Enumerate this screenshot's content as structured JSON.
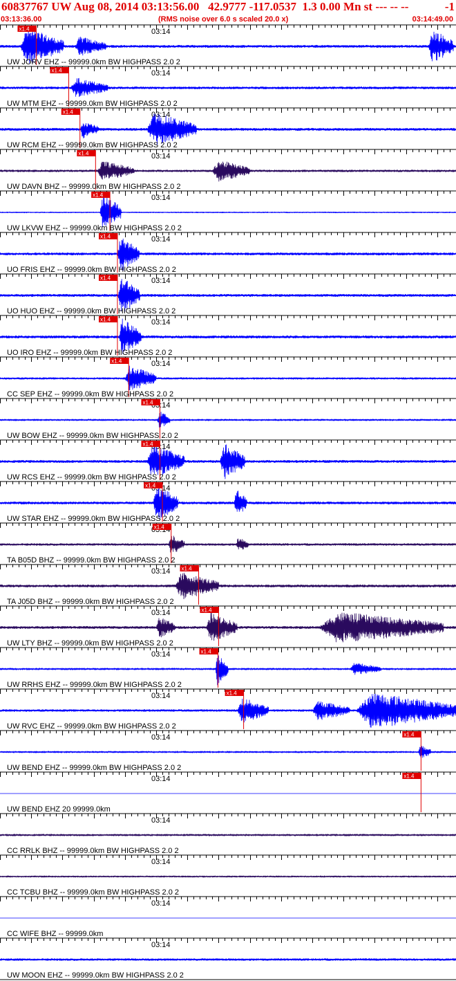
{
  "header": {
    "event_id": "60837767",
    "title": "UW Aug 08, 2014 03:13:56.00   42.9777 -117.0537  1.3 0.00 Mn st --- -- --",
    "right_number": "-1",
    "start_time": "03:13:36.00",
    "note": "(RMS noise over 6.0 s scaled 20.0 x)",
    "end_time": "03:14:49.00"
  },
  "colors": {
    "header_text": "#e00000",
    "trace_blue": "#0000ff",
    "trace_dark": "#2a0a5e",
    "pick_red": "#e00000",
    "axis": "#000000"
  },
  "chart_data": {
    "type": "seismogram",
    "time_axis": {
      "start": "03:13:36.00",
      "end": "03:14:49.00",
      "duration_s": 73,
      "mid_label": "03:14"
    },
    "pick_label": "x1.4",
    "traces": [
      {
        "label": "UW JORV EHZ -- 99999.0km BW  HIGHPASS  2.0  2",
        "color": "blue",
        "pick_s": 5.8,
        "amplitude": 0.3,
        "bursts": [
          {
            "t": 3.2,
            "dur": 7.0,
            "amp": 1.0
          },
          {
            "t": 12.0,
            "dur": 5.0,
            "amp": 0.55
          },
          {
            "t": 68.6,
            "dur": 4.0,
            "amp": 0.95
          }
        ]
      },
      {
        "label": "UW MTM EHZ -- 99999.0km BW  HIGHPASS  2.0  2",
        "color": "blue",
        "pick_s": 11.0,
        "amplitude": 0.28,
        "bursts": [
          {
            "t": 11.3,
            "dur": 6.0,
            "amp": 0.55
          }
        ]
      },
      {
        "label": "UW RCM EHZ -- 99999.0km BW  HIGHPASS  2.0  2",
        "color": "blue",
        "pick_s": 12.8,
        "amplitude": 0.3,
        "bursts": [
          {
            "t": 12.8,
            "dur": 3.0,
            "amp": 0.5
          },
          {
            "t": 23.5,
            "dur": 8.0,
            "amp": 0.9
          }
        ]
      },
      {
        "label": "UW DAVN BHZ -- 99999.0km BW  HIGHPASS  2.0  2",
        "color": "dark",
        "pick_s": 15.3,
        "amplitude": 0.25,
        "bursts": [
          {
            "t": 15.5,
            "dur": 6.0,
            "amp": 0.55
          },
          {
            "t": 34.0,
            "dur": 6.0,
            "amp": 0.6
          }
        ]
      },
      {
        "label": "UW LKVW EHZ -- 99999.0km BW  HIGHPASS  2.0  2",
        "color": "blue",
        "pick_s": 17.6,
        "amplitude": 0.12,
        "bursts": [
          {
            "t": 16.0,
            "dur": 3.4,
            "amp": 1.0
          }
        ]
      },
      {
        "label": "UO FRIS EHZ -- 99999.0km BW  HIGHPASS  2.0  2",
        "color": "blue",
        "pick_s": 18.8,
        "amplitude": 0.3,
        "bursts": [
          {
            "t": 18.8,
            "dur": 3.5,
            "amp": 1.0
          }
        ]
      },
      {
        "label": "UO HUO EHZ -- 99999.0km BW  HIGHPASS  2.0  2",
        "color": "blue",
        "pick_s": 18.8,
        "amplitude": 0.3,
        "bursts": [
          {
            "t": 18.9,
            "dur": 3.5,
            "amp": 1.0
          }
        ]
      },
      {
        "label": "UO IRO EHZ -- 99999.0km BW  HIGHPASS  2.0  2",
        "color": "blue",
        "pick_s": 18.8,
        "amplitude": 0.32,
        "bursts": [
          {
            "t": 19.0,
            "dur": 3.6,
            "amp": 1.0
          }
        ]
      },
      {
        "label": "CC SEP EHZ -- 99999.0km BW  HIGHPASS  2.0  2",
        "color": "blue",
        "pick_s": 20.6,
        "amplitude": 0.22,
        "bursts": [
          {
            "t": 20.0,
            "dur": 5.0,
            "amp": 0.7
          }
        ]
      },
      {
        "label": "UW BOW EHZ -- 99999.0km BW  HIGHPASS  2.0  2",
        "color": "blue",
        "pick_s": 25.6,
        "amplitude": 0.2,
        "bursts": [
          {
            "t": 25.2,
            "dur": 2.0,
            "amp": 0.5
          }
        ]
      },
      {
        "label": "UW RCS EHZ -- 99999.0km BW  HIGHPASS  2.0  2",
        "color": "blue",
        "pick_s": 25.6,
        "amplitude": 0.3,
        "bursts": [
          {
            "t": 23.5,
            "dur": 6.0,
            "amp": 0.95
          },
          {
            "t": 35.2,
            "dur": 4.0,
            "amp": 1.0
          }
        ]
      },
      {
        "label": "UW STAR EHZ -- 99999.0km BW  HIGHPASS  2.0  2",
        "color": "blue",
        "pick_s": 26.0,
        "amplitude": 0.3,
        "bursts": [
          {
            "t": 24.5,
            "dur": 4.0,
            "amp": 1.0
          },
          {
            "t": 37.5,
            "dur": 2.0,
            "amp": 0.8
          }
        ]
      },
      {
        "label": "TA B05D BHZ -- 99999.0km BW  HIGHPASS  2.0  2",
        "color": "dark",
        "pick_s": 27.4,
        "amplitude": 0.25,
        "bursts": [
          {
            "t": 27.0,
            "dur": 2.5,
            "amp": 0.55
          },
          {
            "t": 37.8,
            "dur": 2.0,
            "amp": 0.4
          }
        ]
      },
      {
        "label": "TA J05D BHZ -- 99999.0km BW  HIGHPASS  2.0  2",
        "color": "dark",
        "pick_s": 31.8,
        "amplitude": 0.3,
        "bursts": [
          {
            "t": 28.0,
            "dur": 7.0,
            "amp": 0.75
          }
        ]
      },
      {
        "label": "UW LTY BHZ -- 99999.0km BW  HIGHPASS  2.0  2",
        "color": "dark",
        "pick_s": 35.0,
        "amplitude": 0.3,
        "bursts": [
          {
            "t": 25.0,
            "dur": 3.0,
            "amp": 0.6
          },
          {
            "t": 33.0,
            "dur": 5.0,
            "amp": 0.8
          },
          {
            "t": 51.0,
            "dur": 20.0,
            "amp": 0.85
          }
        ]
      },
      {
        "label": "UW RRHS EHZ -- 99999.0km BW  HIGHPASS  2.0  2",
        "color": "blue",
        "pick_s": 34.9,
        "amplitude": 0.22,
        "bursts": [
          {
            "t": 34.5,
            "dur": 2.0,
            "amp": 0.9
          },
          {
            "t": 56.0,
            "dur": 5.0,
            "amp": 0.35
          }
        ]
      },
      {
        "label": "UW RVC EHZ -- 99999.0km BW  HIGHPASS  2.0  2",
        "color": "blue",
        "pick_s": 39.0,
        "amplitude": 0.25,
        "bursts": [
          {
            "t": 38.0,
            "dur": 5.0,
            "amp": 0.7
          },
          {
            "t": 50.0,
            "dur": 6.0,
            "amp": 0.55
          },
          {
            "t": 57.0,
            "dur": 16.0,
            "amp": 1.0
          }
        ]
      },
      {
        "label": "UW BEND EHZ -- 99999.0km BW  HIGHPASS  2.0  2",
        "color": "blue",
        "pick_s": 67.4,
        "amplitude": 0.2,
        "bursts": [
          {
            "t": 67.0,
            "dur": 2.0,
            "amp": 0.4
          }
        ]
      },
      {
        "label": "UW BEND EHZ 20 99999.0km",
        "color": "flat",
        "pick_s": 67.4,
        "amplitude": 0.0,
        "bursts": []
      },
      {
        "label": "CC RRLK BHZ -- 99999.0km BW  HIGHPASS  2.0  2",
        "color": "dark",
        "pick_s": null,
        "amplitude": 0.22,
        "bursts": []
      },
      {
        "label": "CC TCBU BHZ -- 99999.0km BW  HIGHPASS  2.0  2",
        "color": "dark",
        "pick_s": null,
        "amplitude": 0.18,
        "bursts": []
      },
      {
        "label": "CC WIFE BHZ -- 99999.0km",
        "color": "flat",
        "pick_s": null,
        "amplitude": 0.0,
        "bursts": []
      },
      {
        "label": "UW MOON EHZ -- 99999.0km BW  HIGHPASS  2.0  2",
        "color": "blue",
        "pick_s": null,
        "amplitude": 0.25,
        "bursts": []
      }
    ]
  }
}
